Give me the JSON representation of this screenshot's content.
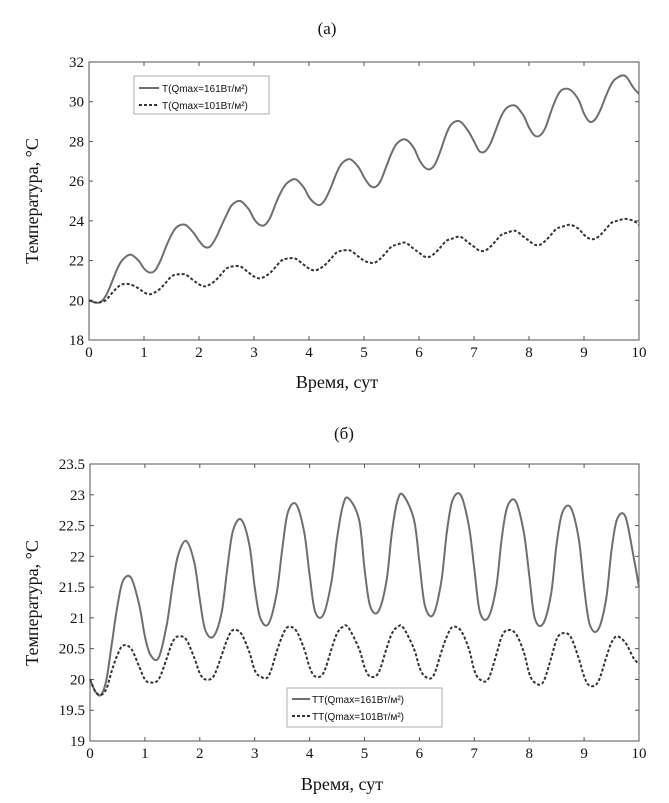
{
  "chart_data": [
    {
      "type": "line",
      "panel_label": "(а)",
      "xlabel": "Время, сут",
      "ylabel": "Температура, °C",
      "xlim": [
        0,
        10
      ],
      "ylim": [
        18,
        32
      ],
      "xticks": [
        "0",
        "1",
        "2",
        "3",
        "4",
        "5",
        "6",
        "7",
        "8",
        "9",
        "10"
      ],
      "yticks": [
        "18",
        "20",
        "22",
        "24",
        "26",
        "28",
        "30",
        "32"
      ],
      "grid": false,
      "legend_position": "top-left",
      "series": [
        {
          "name": "T(Qmax=161Вт/м²)",
          "style": "solid",
          "color": "#6e6e6e",
          "x": [
            0,
            0.1,
            0.2,
            0.3,
            0.4,
            0.5,
            0.6,
            0.75,
            0.9,
            1.0,
            1.1,
            1.2,
            1.3,
            1.4,
            1.5,
            1.6,
            1.75,
            1.9,
            2.0,
            2.1,
            2.2,
            2.3,
            2.4,
            2.5,
            2.6,
            2.75,
            2.9,
            3.0,
            3.1,
            3.2,
            3.3,
            3.4,
            3.5,
            3.6,
            3.75,
            3.9,
            4.0,
            4.1,
            4.2,
            4.3,
            4.4,
            4.5,
            4.6,
            4.75,
            4.9,
            5.0,
            5.1,
            5.2,
            5.3,
            5.4,
            5.5,
            5.6,
            5.75,
            5.9,
            6.0,
            6.1,
            6.2,
            6.3,
            6.4,
            6.5,
            6.6,
            6.75,
            6.9,
            7.0,
            7.1,
            7.2,
            7.3,
            7.4,
            7.5,
            7.6,
            7.75,
            7.9,
            8.0,
            8.1,
            8.2,
            8.3,
            8.4,
            8.5,
            8.6,
            8.75,
            8.9,
            9.0,
            9.1,
            9.2,
            9.3,
            9.4,
            9.5,
            9.6,
            9.75,
            9.9,
            10.0
          ],
          "y": [
            20.0,
            19.9,
            19.9,
            20.2,
            20.8,
            21.5,
            22.0,
            22.3,
            22.0,
            21.6,
            21.4,
            21.5,
            22.0,
            22.7,
            23.3,
            23.7,
            23.8,
            23.4,
            23.0,
            22.7,
            22.7,
            23.1,
            23.7,
            24.3,
            24.8,
            25.0,
            24.6,
            24.1,
            23.8,
            23.8,
            24.2,
            24.9,
            25.5,
            25.9,
            26.1,
            25.7,
            25.2,
            24.9,
            24.8,
            25.1,
            25.7,
            26.4,
            26.9,
            27.1,
            26.7,
            26.2,
            25.8,
            25.7,
            26.0,
            26.7,
            27.4,
            27.9,
            28.1,
            27.7,
            27.1,
            26.7,
            26.6,
            26.9,
            27.6,
            28.4,
            28.9,
            29.0,
            28.5,
            28.0,
            27.5,
            27.5,
            27.9,
            28.6,
            29.3,
            29.7,
            29.8,
            29.3,
            28.7,
            28.3,
            28.3,
            28.7,
            29.5,
            30.2,
            30.6,
            30.6,
            30.1,
            29.4,
            29.0,
            29.1,
            29.6,
            30.3,
            30.9,
            31.2,
            31.3,
            30.7,
            30.4
          ]
        },
        {
          "name": "T(Qmax=101Вт/м²)",
          "style": "dashed",
          "color": "#333333",
          "x": [
            0,
            0.1,
            0.2,
            0.3,
            0.4,
            0.5,
            0.6,
            0.75,
            0.9,
            1.0,
            1.1,
            1.2,
            1.3,
            1.4,
            1.5,
            1.6,
            1.75,
            1.9,
            2.0,
            2.1,
            2.2,
            2.3,
            2.4,
            2.5,
            2.6,
            2.75,
            2.9,
            3.0,
            3.1,
            3.2,
            3.3,
            3.4,
            3.5,
            3.6,
            3.75,
            3.9,
            4.0,
            4.1,
            4.2,
            4.3,
            4.4,
            4.5,
            4.6,
            4.75,
            4.9,
            5.0,
            5.1,
            5.2,
            5.3,
            5.4,
            5.5,
            5.6,
            5.75,
            5.9,
            6.0,
            6.1,
            6.2,
            6.3,
            6.4,
            6.5,
            6.6,
            6.75,
            6.9,
            7.0,
            7.1,
            7.2,
            7.3,
            7.4,
            7.5,
            7.6,
            7.75,
            7.9,
            8.0,
            8.1,
            8.2,
            8.3,
            8.4,
            8.5,
            8.6,
            8.75,
            8.9,
            9.0,
            9.1,
            9.2,
            9.3,
            9.4,
            9.5,
            9.6,
            9.75,
            9.9,
            10.0
          ],
          "y": [
            20.0,
            19.9,
            19.9,
            20.0,
            20.3,
            20.6,
            20.8,
            20.8,
            20.6,
            20.4,
            20.3,
            20.4,
            20.6,
            20.9,
            21.2,
            21.3,
            21.3,
            21.0,
            20.8,
            20.7,
            20.8,
            21.0,
            21.3,
            21.6,
            21.7,
            21.7,
            21.4,
            21.2,
            21.1,
            21.2,
            21.4,
            21.7,
            22.0,
            22.1,
            22.1,
            21.8,
            21.6,
            21.5,
            21.6,
            21.8,
            22.1,
            22.4,
            22.5,
            22.5,
            22.2,
            22.0,
            21.9,
            21.9,
            22.1,
            22.4,
            22.7,
            22.8,
            22.9,
            22.6,
            22.4,
            22.2,
            22.2,
            22.4,
            22.7,
            23.0,
            23.1,
            23.2,
            22.9,
            22.7,
            22.5,
            22.5,
            22.7,
            23.0,
            23.3,
            23.4,
            23.5,
            23.2,
            23.0,
            22.8,
            22.8,
            23.0,
            23.3,
            23.6,
            23.7,
            23.8,
            23.6,
            23.3,
            23.1,
            23.1,
            23.3,
            23.6,
            23.9,
            24.0,
            24.1,
            24.0,
            23.8
          ]
        }
      ]
    },
    {
      "type": "line",
      "panel_label": "(б)",
      "xlabel": "Время, сут",
      "ylabel": "Температура, °C",
      "xlim": [
        0,
        10
      ],
      "ylim": [
        19,
        23.5
      ],
      "xticks": [
        "0",
        "1",
        "2",
        "3",
        "4",
        "5",
        "6",
        "7",
        "8",
        "9",
        "10"
      ],
      "yticks": [
        "19",
        "19.5",
        "20",
        "20.5",
        "21",
        "21.5",
        "22",
        "22.5",
        "23",
        "23.5"
      ],
      "grid": false,
      "legend_position": "bottom-center",
      "series": [
        {
          "name": "TT(Qmax=161Вт/м²)",
          "style": "solid",
          "color": "#6e6e6e",
          "x": [
            0,
            0.1,
            0.2,
            0.3,
            0.4,
            0.5,
            0.6,
            0.75,
            0.9,
            1.0,
            1.1,
            1.25,
            1.4,
            1.5,
            1.6,
            1.75,
            1.9,
            2.0,
            2.1,
            2.25,
            2.4,
            2.5,
            2.6,
            2.75,
            2.9,
            3.0,
            3.1,
            3.25,
            3.4,
            3.5,
            3.6,
            3.75,
            3.9,
            4.0,
            4.1,
            4.25,
            4.4,
            4.5,
            4.6,
            4.7,
            4.9,
            5.0,
            5.1,
            5.25,
            5.4,
            5.5,
            5.6,
            5.7,
            5.9,
            6.0,
            6.1,
            6.25,
            6.4,
            6.5,
            6.6,
            6.75,
            6.9,
            7.0,
            7.1,
            7.25,
            7.4,
            7.5,
            7.6,
            7.75,
            7.9,
            8.0,
            8.1,
            8.25,
            8.4,
            8.5,
            8.6,
            8.75,
            8.9,
            9.0,
            9.1,
            9.25,
            9.4,
            9.5,
            9.6,
            9.75,
            9.9,
            10.0
          ],
          "y": [
            20.0,
            19.8,
            19.75,
            20.0,
            20.6,
            21.2,
            21.6,
            21.65,
            21.2,
            20.7,
            20.4,
            20.35,
            20.9,
            21.5,
            22.0,
            22.25,
            21.9,
            21.3,
            20.8,
            20.7,
            21.1,
            21.8,
            22.4,
            22.6,
            22.2,
            21.5,
            21.0,
            20.9,
            21.4,
            22.1,
            22.7,
            22.85,
            22.4,
            21.7,
            21.1,
            21.05,
            21.6,
            22.3,
            22.8,
            22.95,
            22.6,
            21.8,
            21.2,
            21.1,
            21.6,
            22.4,
            22.9,
            23.0,
            22.6,
            21.9,
            21.2,
            21.05,
            21.6,
            22.4,
            22.9,
            23.0,
            22.5,
            21.8,
            21.1,
            21.0,
            21.5,
            22.3,
            22.8,
            22.9,
            22.4,
            21.7,
            21.0,
            20.9,
            21.4,
            22.2,
            22.7,
            22.8,
            22.3,
            21.5,
            20.9,
            20.8,
            21.3,
            22.1,
            22.6,
            22.65,
            22.0,
            21.5
          ]
        },
        {
          "name": "TT(Qmax=101Вт/м²)",
          "style": "dashed",
          "color": "#333333",
          "x": [
            0,
            0.1,
            0.2,
            0.3,
            0.4,
            0.5,
            0.6,
            0.75,
            0.9,
            1.0,
            1.1,
            1.25,
            1.4,
            1.5,
            1.6,
            1.75,
            1.9,
            2.0,
            2.1,
            2.25,
            2.4,
            2.5,
            2.6,
            2.75,
            2.9,
            3.0,
            3.1,
            3.25,
            3.4,
            3.5,
            3.6,
            3.75,
            3.9,
            4.0,
            4.1,
            4.25,
            4.4,
            4.5,
            4.6,
            4.7,
            4.9,
            5.0,
            5.1,
            5.25,
            5.4,
            5.5,
            5.6,
            5.7,
            5.9,
            6.0,
            6.1,
            6.25,
            6.4,
            6.5,
            6.6,
            6.75,
            6.9,
            7.0,
            7.1,
            7.25,
            7.4,
            7.5,
            7.6,
            7.75,
            7.9,
            8.0,
            8.1,
            8.25,
            8.4,
            8.5,
            8.6,
            8.75,
            8.9,
            9.0,
            9.1,
            9.25,
            9.4,
            9.5,
            9.6,
            9.75,
            9.9,
            10.0
          ],
          "y": [
            20.0,
            19.8,
            19.75,
            19.85,
            20.15,
            20.4,
            20.55,
            20.5,
            20.2,
            20.0,
            19.95,
            20.0,
            20.35,
            20.6,
            20.7,
            20.65,
            20.35,
            20.1,
            20.0,
            20.05,
            20.4,
            20.65,
            20.8,
            20.75,
            20.45,
            20.15,
            20.05,
            20.05,
            20.45,
            20.7,
            20.85,
            20.8,
            20.5,
            20.2,
            20.05,
            20.1,
            20.5,
            20.75,
            20.85,
            20.85,
            20.5,
            20.2,
            20.05,
            20.1,
            20.5,
            20.75,
            20.85,
            20.85,
            20.5,
            20.2,
            20.05,
            20.05,
            20.45,
            20.7,
            20.85,
            20.8,
            20.5,
            20.15,
            20.0,
            20.0,
            20.4,
            20.7,
            20.8,
            20.75,
            20.45,
            20.1,
            19.95,
            19.95,
            20.35,
            20.65,
            20.75,
            20.7,
            20.35,
            20.05,
            19.9,
            19.95,
            20.35,
            20.6,
            20.7,
            20.6,
            20.35,
            20.25
          ]
        }
      ]
    }
  ]
}
